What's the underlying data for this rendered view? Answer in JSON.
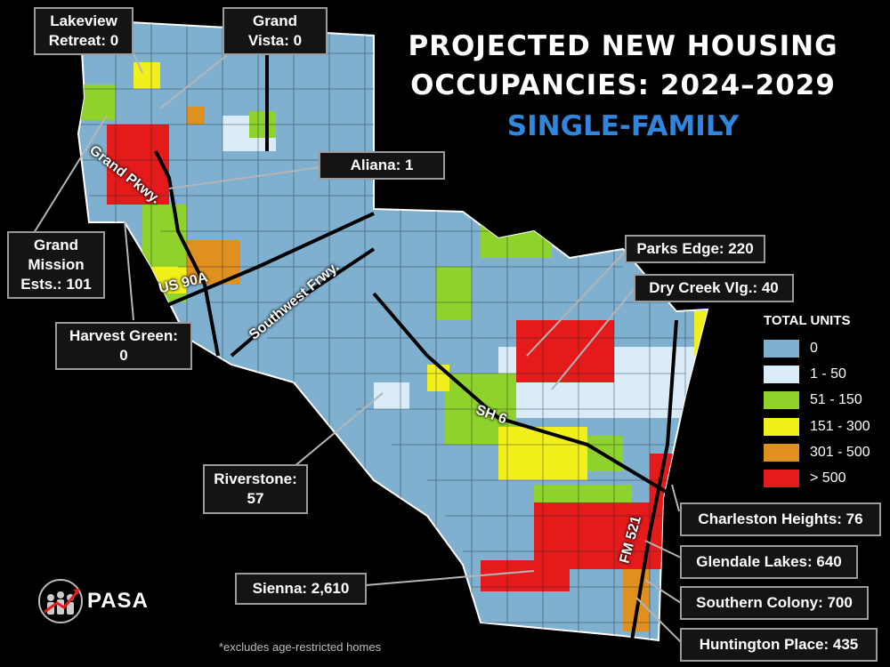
{
  "title": {
    "line1": "PROJECTED NEW HOUSING",
    "line2": "OCCUPANCIES: 2024–2029",
    "subtitle": "SINGLE-FAMILY"
  },
  "legend": {
    "title": "TOTAL UNITS",
    "items": [
      {
        "label": "0",
        "color": "#7fb0cf"
      },
      {
        "label": "1 - 50",
        "color": "#d9ecf8"
      },
      {
        "label": "51 - 150",
        "color": "#8fd22c"
      },
      {
        "label": "151 - 300",
        "color": "#f2f01a"
      },
      {
        "label": "301 - 500",
        "color": "#e0901e"
      },
      {
        "label": "> 500",
        "color": "#e51b1b"
      }
    ]
  },
  "callouts": {
    "lakeview": "Lakeview Retreat: 0",
    "lakeview_l1": "Lakeview",
    "lakeview_l2": "Retreat: 0",
    "grand_vista_l1": "Grand",
    "grand_vista_l2": "Vista: 0",
    "aliana": "Aliana: 1",
    "grand_mission_l1": "Grand",
    "grand_mission_l2": "Mission",
    "grand_mission_l3": "Ests.: 101",
    "harvest_green_l1": "Harvest Green:",
    "harvest_green_l2": "0",
    "parks_edge": "Parks Edge: 220",
    "dry_creek": "Dry Creek Vlg.: 40",
    "riverstone_l1": "Riverstone:",
    "riverstone_l2": "57",
    "charleston": "Charleston Heights: 76",
    "glendale": "Glendale Lakes: 640",
    "southern_colony": "Southern Colony: 700",
    "sienna": "Sienna: 2,610",
    "huntington": "Huntington Place: 435"
  },
  "roads": {
    "grand_pkwy": "Grand Pkwy.",
    "us90a": "US 90A",
    "southwest_frwy": "Southwest Frwy.",
    "sh6": "SH 6",
    "fm521": "FM 521"
  },
  "logo": {
    "name": "PASA"
  },
  "footnote": "*excludes age-restricted homes"
}
